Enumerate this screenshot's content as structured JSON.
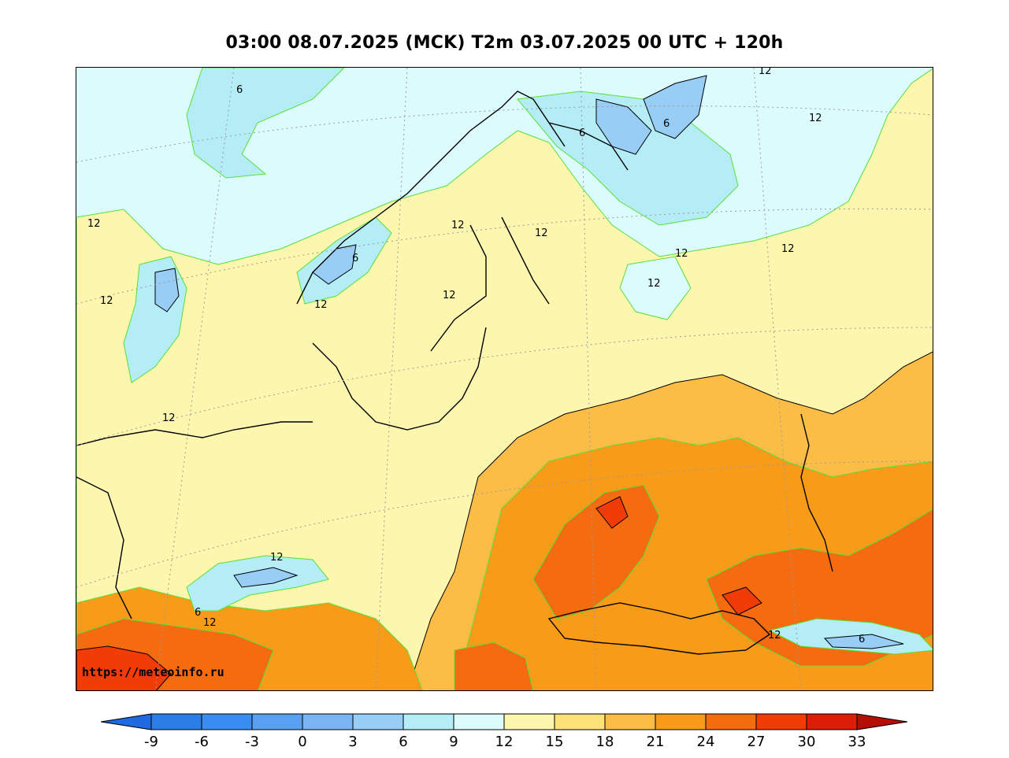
{
  "title": "03:00 08.07.2025 (MCK) T2m 03.07.2025 00 UTC + 120h",
  "watermark": "https://meteoinfo.ru",
  "colorbar": {
    "ticks": [
      "-9",
      "-6",
      "-3",
      "0",
      "3",
      "6",
      "9",
      "12",
      "15",
      "18",
      "21",
      "24",
      "27",
      "30",
      "33"
    ],
    "colors": [
      "#2c7ee6",
      "#3a8cf0",
      "#5aa0f0",
      "#7ab4f2",
      "#98cdf5",
      "#b4edf6",
      "#dcfbfc",
      "#fcf6ae",
      "#fde27a",
      "#fbbd45",
      "#f89b18",
      "#f56b10",
      "#f23c08",
      "#dc1e08"
    ],
    "under_color": "#1f6ae0",
    "over_color": "#b40e05"
  },
  "contour_labels": [
    "12",
    "6",
    "6",
    "6",
    "12",
    "12",
    "12",
    "12",
    "12",
    "6",
    "12",
    "12",
    "12",
    "12",
    "12",
    "12",
    "12",
    "6",
    "12",
    "12",
    "6"
  ]
}
